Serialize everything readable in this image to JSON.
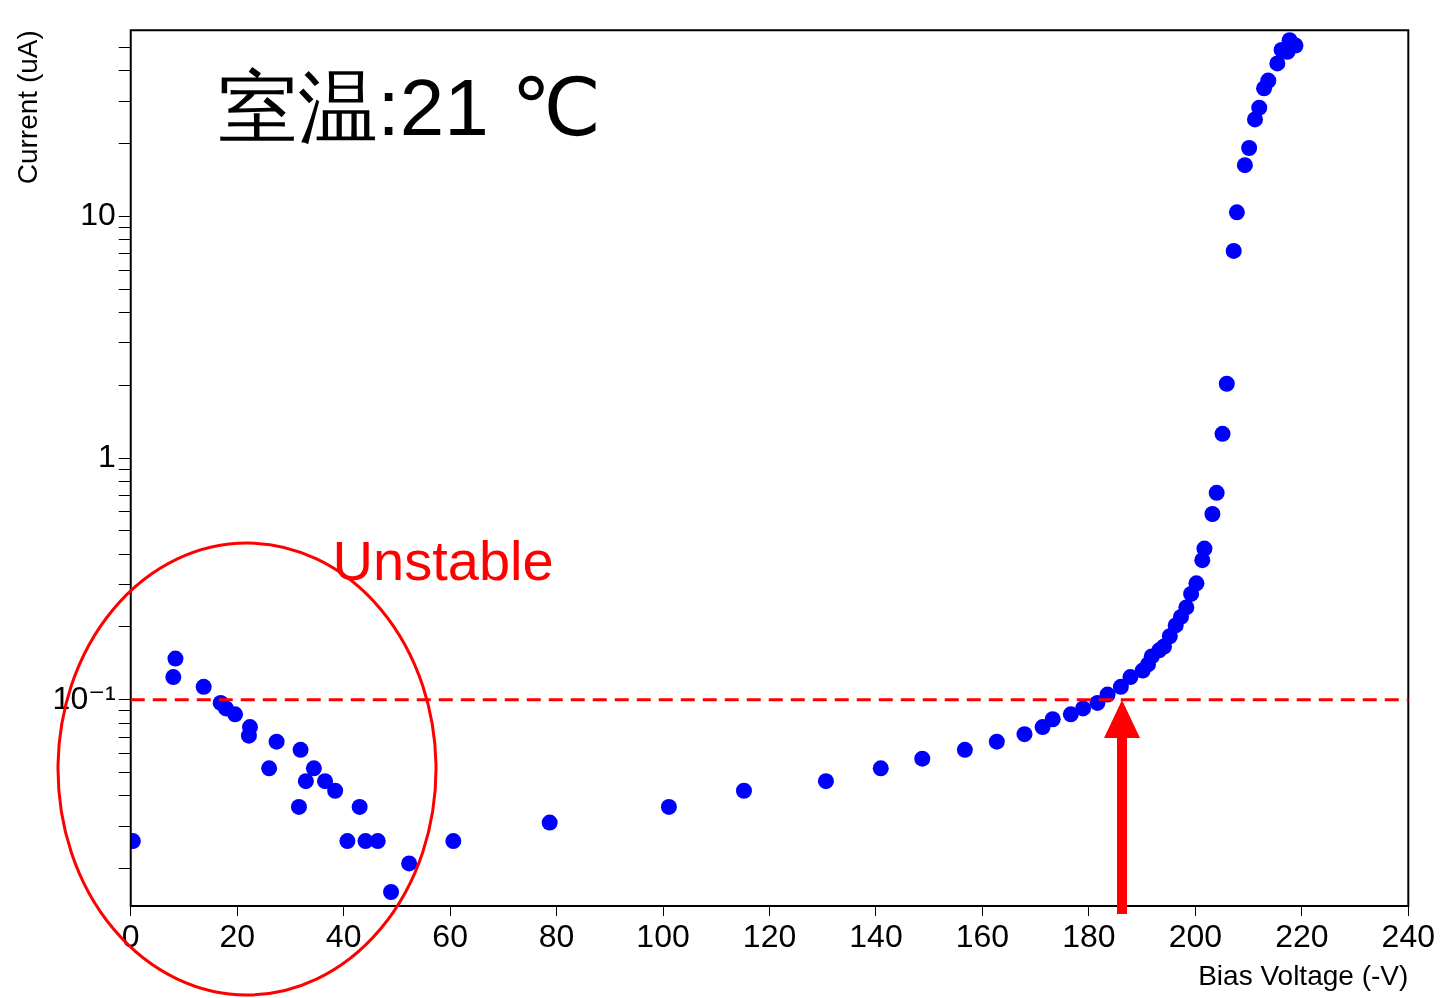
{
  "chart_data": {
    "type": "scatter",
    "xlabel": "Bias Voltage (-V)",
    "ylabel": "Current (uA)",
    "annotations": [
      "室温:21 ℃",
      "Unstable"
    ],
    "log": "y",
    "marker": "circle",
    "xlim": [
      0,
      240
    ],
    "xticks": [
      0,
      20,
      40,
      60,
      80,
      100,
      120,
      140,
      160,
      180,
      200,
      220,
      240
    ],
    "ylim": [
      0.014,
      59
    ],
    "yticks": [
      {
        "value": 0.02,
        "label": null
      },
      {
        "value": 0.03,
        "label": null
      },
      {
        "value": 0.04,
        "label": null
      },
      {
        "value": 0.05,
        "label": null
      },
      {
        "value": 0.06,
        "label": null
      },
      {
        "value": 0.07,
        "label": null
      },
      {
        "value": 0.08,
        "label": null
      },
      {
        "value": 0.09,
        "label": null
      },
      {
        "value": 0.1,
        "label": "10⁻¹"
      },
      {
        "value": 0.2,
        "label": null
      },
      {
        "value": 0.3,
        "label": null
      },
      {
        "value": 0.4,
        "label": null
      },
      {
        "value": 0.5,
        "label": null
      },
      {
        "value": 0.6,
        "label": null
      },
      {
        "value": 0.7,
        "label": null
      },
      {
        "value": 0.8,
        "label": null
      },
      {
        "value": 0.9,
        "label": null
      },
      1,
      {
        "value": 2,
        "label": null
      },
      {
        "value": 3,
        "label": null
      },
      {
        "value": 4,
        "label": null
      },
      {
        "value": 5,
        "label": null
      },
      {
        "value": 6,
        "label": null
      },
      {
        "value": 7,
        "label": null
      },
      {
        "value": 8,
        "label": null
      },
      {
        "value": 9,
        "label": null
      },
      10,
      {
        "value": 20,
        "label": null
      },
      {
        "value": 30,
        "label": null
      },
      {
        "value": 40,
        "label": null
      },
      {
        "value": 50,
        "label": null
      }
    ],
    "ref_lines": [
      {
        "axis": "y",
        "value": 0.1,
        "color": "#ff0000",
        "line_style": "dashed"
      }
    ],
    "series": [
      {
        "color": "#0000ff",
        "x": [
          0.4,
          8,
          8.4,
          13.7,
          16.9,
          17.9,
          19.6,
          22.4,
          22.2,
          27.4,
          26,
          31.9,
          32.9,
          34.4,
          31.6,
          36.5,
          38.4,
          43,
          40.7,
          44.1,
          46.4,
          52.3,
          48.9,
          60.6,
          78.7,
          101.1,
          115.2,
          130.6,
          140.9,
          148.7,
          156.7,
          162.7,
          167.9,
          171.3,
          173.2,
          176.6,
          178.9,
          181.6,
          183.5,
          186,
          187.8,
          190.1,
          191.1,
          191.8,
          193.2,
          194.1,
          195.2,
          196.3,
          197.3,
          198.3,
          199.2,
          200.2,
          201.3,
          201.7,
          203.2,
          204,
          205.1,
          205.9,
          207.2,
          207.8,
          209.3,
          210.1,
          211.2,
          212,
          212.9,
          213.7,
          215.4,
          216.2,
          217.3,
          217.7,
          218.8
        ],
        "values": [
          0.026,
          0.124,
          0.148,
          0.113,
          0.097,
          0.092,
          0.087,
          0.077,
          0.071,
          0.067,
          0.052,
          0.062,
          0.046,
          0.052,
          0.036,
          0.046,
          0.042,
          0.036,
          0.026,
          0.026,
          0.026,
          0.021,
          0.016,
          0.026,
          0.031,
          0.036,
          0.042,
          0.046,
          0.052,
          0.057,
          0.062,
          0.067,
          0.072,
          0.077,
          0.083,
          0.087,
          0.092,
          0.097,
          0.105,
          0.113,
          0.124,
          0.132,
          0.14,
          0.151,
          0.16,
          0.166,
          0.183,
          0.203,
          0.22,
          0.241,
          0.274,
          0.303,
          0.378,
          0.422,
          0.587,
          0.718,
          1.26,
          2.03,
          7.2,
          10.4,
          16.3,
          19.2,
          25.2,
          28.2,
          33.9,
          36.5,
          43,
          48.9,
          48,
          53.6,
          51
        ]
      }
    ]
  }
}
